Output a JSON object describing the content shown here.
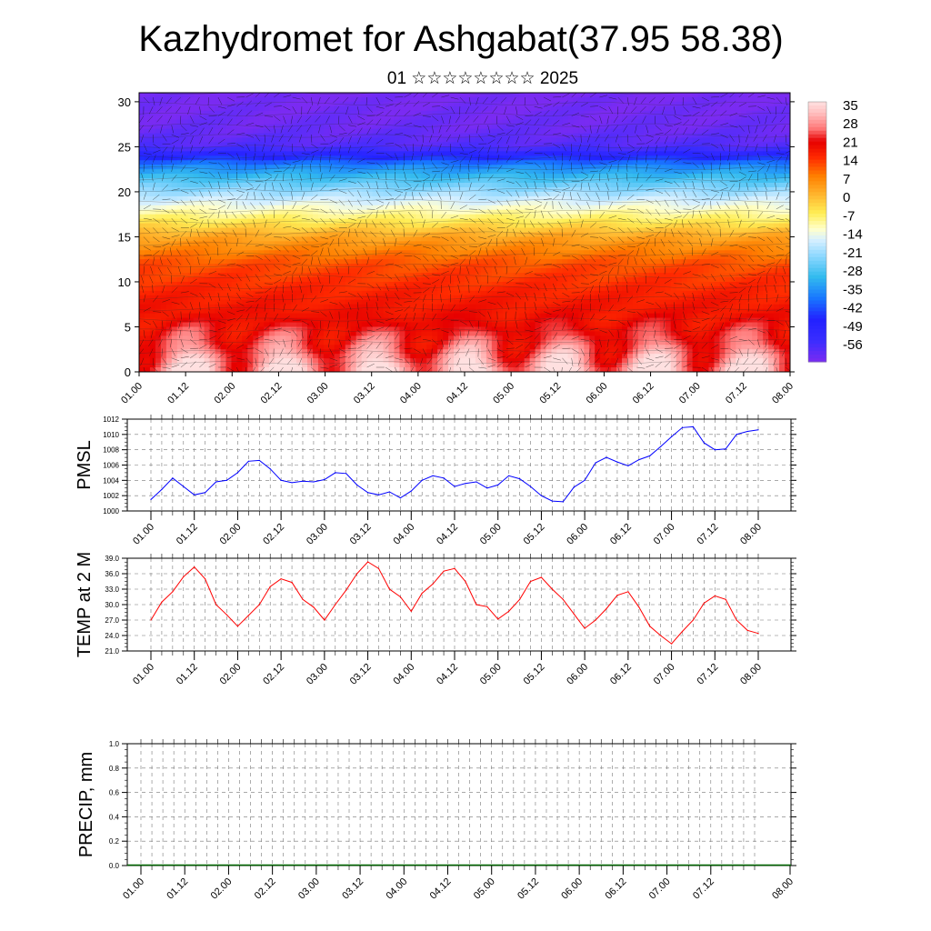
{
  "title": "Kazhydromet for Ashgabat(37.95 58.38)",
  "subtitle": "01 ☆☆☆☆☆☆☆☆ 2025",
  "chart_data": [
    {
      "type": "heatmap",
      "name": "upper-air-cross-section",
      "x_tick_labels": [
        "01.00",
        "01.12",
        "02.00",
        "02.12",
        "03.00",
        "03.12",
        "04.00",
        "04.12",
        "05.00",
        "05.12",
        "06.00",
        "06.12",
        "07.00",
        "07.12",
        "08.00"
      ],
      "y_ticks": [
        0,
        5,
        10,
        15,
        20,
        25,
        30
      ],
      "ylim": [
        0,
        31
      ],
      "colorbar_labels": [
        "35",
        "28",
        "21",
        "14",
        "7",
        "0",
        "-7",
        "-14",
        "-21",
        "-28",
        "-35",
        "-42",
        "-49",
        "-56"
      ],
      "colorbar_range": [
        -60,
        38
      ],
      "legend_position": "right",
      "has_wind_vectors": true,
      "profile_levels": [
        0,
        3,
        6,
        9,
        12,
        15,
        17,
        19,
        21,
        23,
        25,
        27,
        31
      ],
      "profile_values": [
        34,
        26,
        21,
        18,
        14,
        5,
        -5,
        -14,
        -24,
        -35,
        -55,
        -58,
        -60
      ],
      "diurnal_amplitude": 10,
      "colors": {
        "warm_peak": "#ffc2c2",
        "red": "#e60000",
        "orange": "#ff7f00",
        "yellow": "#ffee55",
        "light_blue": "#bfe6ff",
        "cyan": "#33bbee",
        "blue": "#2222ff",
        "violet": "#7a2bf2"
      }
    },
    {
      "type": "line",
      "name": "pmsl",
      "ylabel": "PMSL",
      "x_tick_labels": [
        "01.00",
        "01.12",
        "02.00",
        "02.12",
        "03.00",
        "03.12",
        "04.00",
        "04.12",
        "05.00",
        "05.12",
        "06.00",
        "06.12",
        "07.00",
        "07.12",
        "08.00"
      ],
      "ylim": [
        1000,
        1012
      ],
      "y_ticks": [
        1000,
        1002,
        1004,
        1006,
        1008,
        1010,
        1012
      ],
      "grid": true,
      "color": "#0000ff",
      "values": [
        1001.5,
        1002.8,
        1004.3,
        1003.2,
        1002.1,
        1002.4,
        1003.8,
        1004.0,
        1005.0,
        1006.5,
        1006.6,
        1005.5,
        1004.0,
        1003.7,
        1003.9,
        1003.8,
        1004.1,
        1005.0,
        1004.9,
        1003.4,
        1002.4,
        1002.1,
        1002.5,
        1001.7,
        1002.6,
        1004.0,
        1004.6,
        1004.3,
        1003.2,
        1003.6,
        1003.8,
        1003.0,
        1003.4,
        1004.6,
        1004.2,
        1003.2,
        1002.0,
        1001.3,
        1001.2,
        1003.1,
        1004.0,
        1006.3,
        1007.0,
        1006.4,
        1005.9,
        1006.7,
        1007.2,
        1008.4,
        1009.7,
        1010.9,
        1011.0,
        1008.9,
        1008.0,
        1008.1,
        1010.0,
        1010.4,
        1010.6
      ]
    },
    {
      "type": "line",
      "name": "temp-2m",
      "ylabel": "TEMP at 2 M",
      "x_tick_labels": [
        "01.00",
        "01.12",
        "02.00",
        "02.12",
        "03.00",
        "03.12",
        "04.00",
        "04.12",
        "05.00",
        "05.12",
        "06.00",
        "06.12",
        "07.00",
        "07.12",
        "08.00"
      ],
      "ylim": [
        21,
        39
      ],
      "y_ticks": [
        "21.0",
        "24.0",
        "27.0",
        "30.0",
        "33.0",
        "36.0",
        "39.0"
      ],
      "grid": true,
      "color": "#ff0000",
      "values": [
        27.0,
        30.5,
        32.5,
        35.4,
        37.3,
        35.0,
        30.0,
        28.0,
        25.8,
        27.9,
        30.0,
        33.5,
        35.0,
        34.3,
        31.0,
        29.5,
        27.0,
        30.0,
        32.8,
        36.0,
        38.3,
        37.0,
        33.0,
        31.5,
        28.7,
        32.2,
        34.0,
        36.5,
        37.0,
        34.5,
        30.0,
        29.6,
        27.2,
        28.7,
        31.0,
        34.5,
        35.3,
        33.0,
        31.0,
        28.2,
        25.4,
        27.0,
        29.2,
        31.8,
        32.5,
        29.5,
        25.8,
        24.0,
        22.4,
        24.8,
        27.0,
        30.3,
        31.7,
        31.0,
        27.0,
        25.0,
        24.4
      ]
    },
    {
      "type": "bar",
      "name": "precip",
      "ylabel": "PRECIP, mm",
      "x_tick_labels": [
        "01.00",
        "01.12",
        "02.00",
        "02.12",
        "03.00",
        "03.12",
        "04.00",
        "04.12",
        "05.00",
        "05.12",
        "06.00",
        "06.12",
        "07.00",
        "07.12",
        "08.00"
      ],
      "ylim": [
        0,
        1
      ],
      "y_ticks": [
        "0.0",
        "0.2",
        "0.4",
        "0.6",
        "0.8",
        "1.0"
      ],
      "grid": true,
      "color": "#006600",
      "values": [
        0,
        0,
        0,
        0,
        0,
        0,
        0,
        0,
        0,
        0,
        0,
        0,
        0,
        0,
        0,
        0,
        0,
        0,
        0,
        0,
        0,
        0,
        0,
        0,
        0,
        0,
        0,
        0,
        0,
        0,
        0,
        0,
        0,
        0,
        0,
        0,
        0,
        0,
        0,
        0,
        0,
        0,
        0,
        0,
        0,
        0,
        0,
        0,
        0,
        0,
        0,
        0,
        0,
        0,
        0,
        0,
        0
      ]
    }
  ]
}
